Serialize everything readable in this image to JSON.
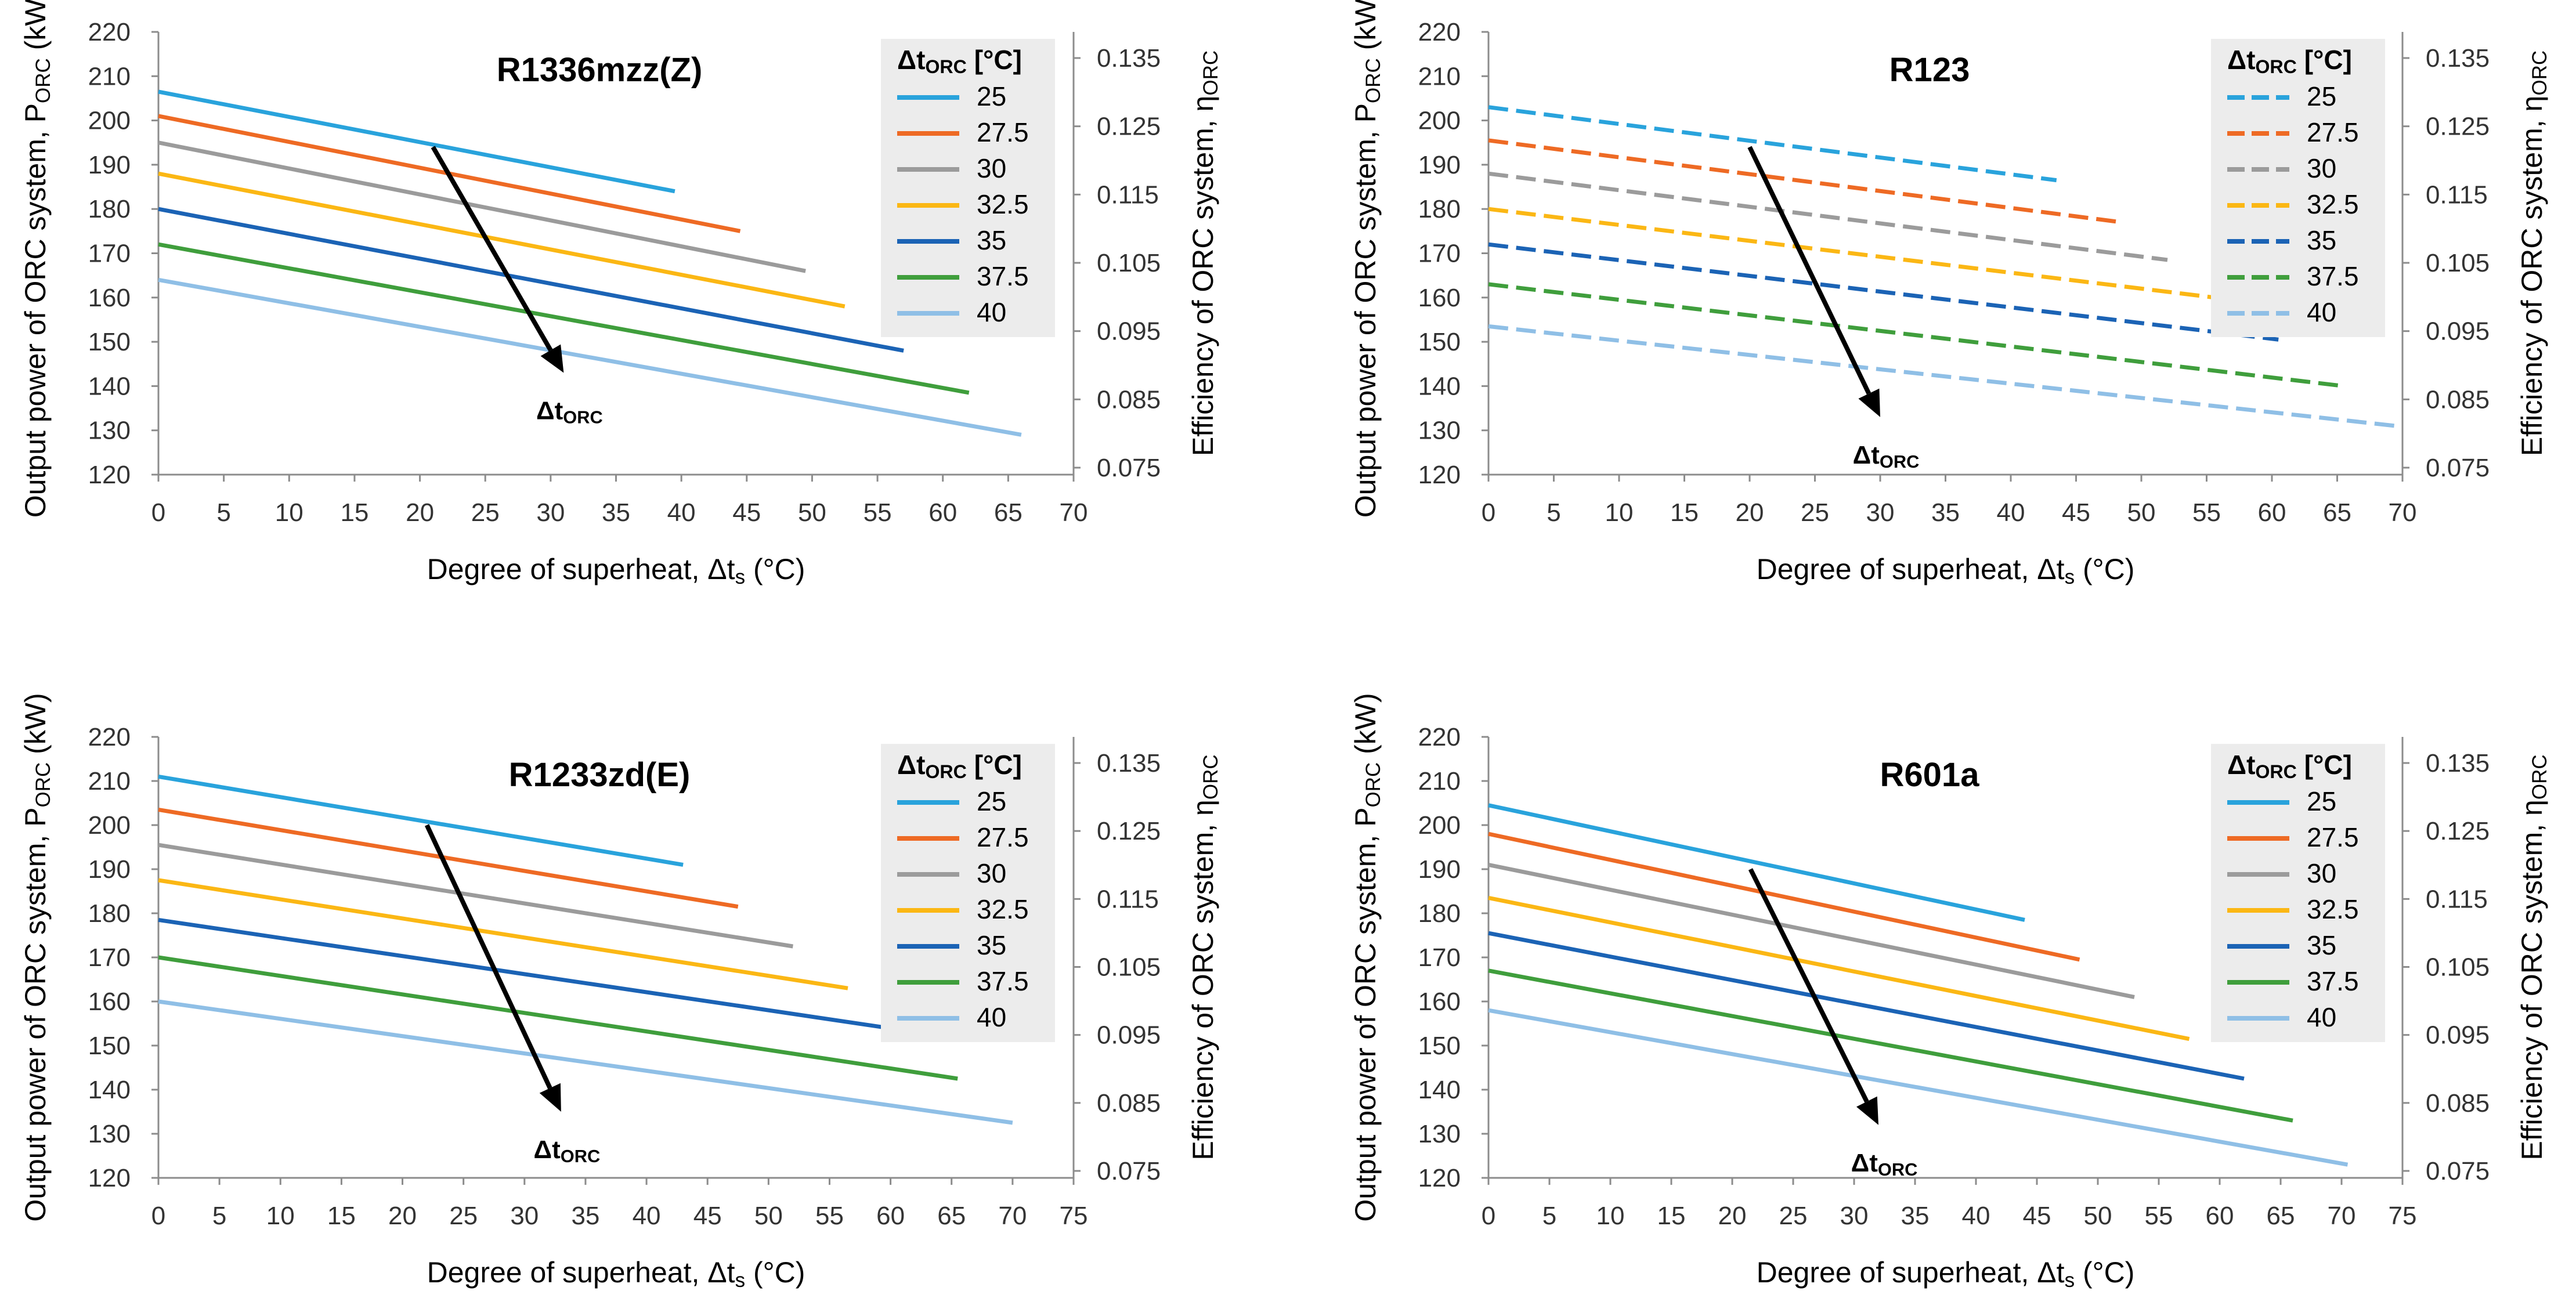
{
  "colors": {
    "25": "#29A3DC",
    "27.5": "#EE6A24",
    "30": "#9B9B9B",
    "32.5": "#FBB714",
    "35": "#1B63B5",
    "37.5": "#3F9E3C",
    "40": "#8FBFE6",
    "axis": "#8c8c8c",
    "legend_bg": "#ececec"
  },
  "common": {
    "legend_title": "Δt",
    "legend_title_sub": "ORC",
    "legend_title_unit": " [°C]",
    "xlabel": "Degree of superheat, Δt",
    "xlabel_sub": "s",
    "xlabel_unit": " (°C)",
    "ylabel": "Output power of ORC system, P",
    "ylabel_sub": "ORC",
    "ylabel_unit": " (kW)",
    "y2label": "Efficiency of ORC system, η",
    "y2label_sub": "ORC",
    "arrow_label": "Δt",
    "arrow_label_sub": "ORC"
  },
  "chart_data": [
    {
      "type": "line",
      "title": "R1336mzz(Z)",
      "dashed": false,
      "xlim": [
        0,
        70
      ],
      "xticks": [
        "0",
        "5",
        "10",
        "15",
        "20",
        "25",
        "30",
        "35",
        "40",
        "45",
        "50",
        "55",
        "60",
        "65",
        "70"
      ],
      "ylim": [
        120,
        220
      ],
      "yticks": [
        "120",
        "130",
        "140",
        "150",
        "160",
        "170",
        "180",
        "190",
        "200",
        "210",
        "220"
      ],
      "y2ticks": [
        "0.075",
        "0.085",
        "0.095",
        "0.105",
        "0.115",
        "0.125",
        "0.135"
      ],
      "series": [
        {
          "name": "25",
          "x": [
            0,
            39.5
          ],
          "y": [
            206.5,
            184
          ]
        },
        {
          "name": "27.5",
          "x": [
            0,
            44.5
          ],
          "y": [
            201,
            175
          ]
        },
        {
          "name": "30",
          "x": [
            0,
            49.5
          ],
          "y": [
            195,
            166
          ]
        },
        {
          "name": "32.5",
          "x": [
            0,
            52.5
          ],
          "y": [
            188,
            158
          ]
        },
        {
          "name": "35",
          "x": [
            0,
            57
          ],
          "y": [
            180,
            148
          ]
        },
        {
          "name": "37.5",
          "x": [
            0,
            62
          ],
          "y": [
            172,
            138.5
          ]
        },
        {
          "name": "40",
          "x": [
            0,
            66
          ],
          "y": [
            164,
            129
          ]
        }
      ],
      "arrow": {
        "from": [
          21,
          194
        ],
        "to": [
          31,
          143
        ]
      }
    },
    {
      "type": "line",
      "title": "R123",
      "dashed": true,
      "xlim": [
        0,
        70
      ],
      "xticks": [
        "0",
        "5",
        "10",
        "15",
        "20",
        "25",
        "30",
        "35",
        "40",
        "45",
        "50",
        "55",
        "60",
        "65",
        "70"
      ],
      "ylim": [
        120,
        220
      ],
      "yticks": [
        "120",
        "130",
        "140",
        "150",
        "160",
        "170",
        "180",
        "190",
        "200",
        "210",
        "220"
      ],
      "y2ticks": [
        "0.075",
        "0.085",
        "0.095",
        "0.105",
        "0.115",
        "0.125",
        "0.135"
      ],
      "series": [
        {
          "name": "25",
          "x": [
            0,
            43.5
          ],
          "y": [
            203,
            186.5
          ]
        },
        {
          "name": "27.5",
          "x": [
            0,
            48.5
          ],
          "y": [
            195.5,
            177
          ]
        },
        {
          "name": "30",
          "x": [
            0,
            52
          ],
          "y": [
            188,
            168.5
          ]
        },
        {
          "name": "32.5",
          "x": [
            0,
            57
          ],
          "y": [
            180,
            159.5
          ]
        },
        {
          "name": "35",
          "x": [
            0,
            60.5
          ],
          "y": [
            172,
            150.5
          ]
        },
        {
          "name": "37.5",
          "x": [
            0,
            65.5
          ],
          "y": [
            163,
            140
          ]
        },
        {
          "name": "40",
          "x": [
            0,
            69.5
          ],
          "y": [
            153.5,
            131
          ]
        }
      ],
      "arrow": {
        "from": [
          20,
          194
        ],
        "to": [
          30,
          133
        ]
      }
    },
    {
      "type": "line",
      "title": "R1233zd(E)",
      "dashed": false,
      "xlim": [
        0,
        75
      ],
      "xticks": [
        "0",
        "5",
        "10",
        "15",
        "20",
        "25",
        "30",
        "35",
        "40",
        "45",
        "50",
        "55",
        "60",
        "65",
        "70",
        "75"
      ],
      "ylim": [
        120,
        220
      ],
      "yticks": [
        "120",
        "130",
        "140",
        "150",
        "160",
        "170",
        "180",
        "190",
        "200",
        "210",
        "220"
      ],
      "y2ticks": [
        "0.075",
        "0.085",
        "0.095",
        "0.105",
        "0.115",
        "0.125",
        "0.135"
      ],
      "series": [
        {
          "name": "25",
          "x": [
            0,
            43
          ],
          "y": [
            211,
            191
          ]
        },
        {
          "name": "27.5",
          "x": [
            0,
            47.5
          ],
          "y": [
            203.5,
            181.5
          ]
        },
        {
          "name": "30",
          "x": [
            0,
            52
          ],
          "y": [
            195.5,
            172.5
          ]
        },
        {
          "name": "32.5",
          "x": [
            0,
            56.5
          ],
          "y": [
            187.5,
            163
          ]
        },
        {
          "name": "35",
          "x": [
            0,
            61
          ],
          "y": [
            178.5,
            153.5
          ]
        },
        {
          "name": "37.5",
          "x": [
            0,
            65.5
          ],
          "y": [
            170,
            142.5
          ]
        },
        {
          "name": "40",
          "x": [
            0,
            70
          ],
          "y": [
            160,
            132.5
          ]
        }
      ],
      "arrow": {
        "from": [
          22,
          200
        ],
        "to": [
          33,
          135
        ]
      }
    },
    {
      "type": "line",
      "title": "R601a",
      "dashed": false,
      "xlim": [
        0,
        75
      ],
      "xticks": [
        "0",
        "5",
        "10",
        "15",
        "20",
        "25",
        "30",
        "35",
        "40",
        "45",
        "50",
        "55",
        "60",
        "65",
        "70",
        "75"
      ],
      "ylim": [
        120,
        220
      ],
      "yticks": [
        "120",
        "130",
        "140",
        "150",
        "160",
        "170",
        "180",
        "190",
        "200",
        "210",
        "220"
      ],
      "y2ticks": [
        "0.075",
        "0.085",
        "0.095",
        "0.105",
        "0.115",
        "0.125",
        "0.135"
      ],
      "series": [
        {
          "name": "25",
          "x": [
            0,
            44
          ],
          "y": [
            204.5,
            178.5
          ]
        },
        {
          "name": "27.5",
          "x": [
            0,
            48.5
          ],
          "y": [
            198,
            169.5
          ]
        },
        {
          "name": "30",
          "x": [
            0,
            53
          ],
          "y": [
            191,
            161
          ]
        },
        {
          "name": "32.5",
          "x": [
            0,
            57.5
          ],
          "y": [
            183.5,
            151.5
          ]
        },
        {
          "name": "35",
          "x": [
            0,
            62
          ],
          "y": [
            175.5,
            142.5
          ]
        },
        {
          "name": "37.5",
          "x": [
            0,
            66
          ],
          "y": [
            167,
            133
          ]
        },
        {
          "name": "40",
          "x": [
            0,
            70.5
          ],
          "y": [
            158,
            123
          ]
        }
      ],
      "arrow": {
        "from": [
          21.5,
          190
        ],
        "to": [
          32,
          132
        ]
      }
    }
  ]
}
